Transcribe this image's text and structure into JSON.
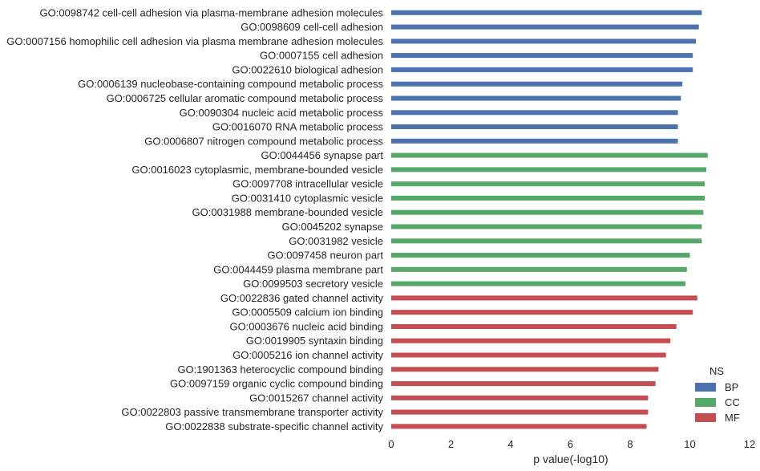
{
  "chart_data": {
    "type": "bar",
    "orientation": "horizontal",
    "xlabel": "p value(-log10)",
    "ylabel": "",
    "xlim": [
      0,
      12
    ],
    "x_ticks": [
      "0",
      "2",
      "4",
      "6",
      "8",
      "10",
      "12"
    ],
    "grid": false,
    "legend": {
      "title": "NS",
      "placement": "bottom-right",
      "entries": [
        {
          "name": "BP",
          "color": "#4c72b0"
        },
        {
          "name": "CC",
          "color": "#55a868"
        },
        {
          "name": "MF",
          "color": "#c44e52"
        }
      ]
    },
    "categories": [
      {
        "label": "GO:0098742 cell-cell adhesion via plasma-membrane adhesion molecules",
        "value": 10.4,
        "ns": "BP"
      },
      {
        "label": "GO:0098609 cell-cell adhesion",
        "value": 10.3,
        "ns": "BP"
      },
      {
        "label": "GO:0007156 homophilic cell adhesion via plasma membrane adhesion molecules",
        "value": 10.2,
        "ns": "BP"
      },
      {
        "label": "GO:0007155 cell adhesion",
        "value": 10.1,
        "ns": "BP"
      },
      {
        "label": "GO:0022610 biological adhesion",
        "value": 10.1,
        "ns": "BP"
      },
      {
        "label": "GO:0006139 nucleobase-containing compound metabolic process",
        "value": 9.75,
        "ns": "BP"
      },
      {
        "label": "GO:0006725 cellular aromatic compound metabolic process",
        "value": 9.7,
        "ns": "BP"
      },
      {
        "label": "GO:0090304 nucleic acid metabolic process",
        "value": 9.6,
        "ns": "BP"
      },
      {
        "label": "GO:0016070 RNA metabolic process",
        "value": 9.6,
        "ns": "BP"
      },
      {
        "label": "GO:0006807 nitrogen compound metabolic process",
        "value": 9.6,
        "ns": "BP"
      },
      {
        "label": "GO:0044456 synapse part",
        "value": 10.6,
        "ns": "CC"
      },
      {
        "label": "GO:0016023 cytoplasmic, membrane-bounded vesicle",
        "value": 10.55,
        "ns": "CC"
      },
      {
        "label": "GO:0097708 intracellular vesicle",
        "value": 10.5,
        "ns": "CC"
      },
      {
        "label": "GO:0031410 cytoplasmic vesicle",
        "value": 10.5,
        "ns": "CC"
      },
      {
        "label": "GO:0031988 membrane-bounded vesicle",
        "value": 10.45,
        "ns": "CC"
      },
      {
        "label": "GO:0045202 synapse",
        "value": 10.4,
        "ns": "CC"
      },
      {
        "label": "GO:0031982 vesicle",
        "value": 10.4,
        "ns": "CC"
      },
      {
        "label": "GO:0097458 neuron part",
        "value": 10.0,
        "ns": "CC"
      },
      {
        "label": "GO:0044459 plasma membrane part",
        "value": 9.9,
        "ns": "CC"
      },
      {
        "label": "GO:0099503 secretory vesicle",
        "value": 9.85,
        "ns": "CC"
      },
      {
        "label": "GO:0022836 gated channel activity",
        "value": 10.25,
        "ns": "MF"
      },
      {
        "label": "GO:0005509 calcium ion binding",
        "value": 10.1,
        "ns": "MF"
      },
      {
        "label": "GO:0003676 nucleic acid binding",
        "value": 9.55,
        "ns": "MF"
      },
      {
        "label": "GO:0019905 syntaxin binding",
        "value": 9.35,
        "ns": "MF"
      },
      {
        "label": "GO:0005216 ion channel activity",
        "value": 9.2,
        "ns": "MF"
      },
      {
        "label": "GO:1901363 heterocyclic compound binding",
        "value": 8.95,
        "ns": "MF"
      },
      {
        "label": "GO:0097159 organic cyclic compound binding",
        "value": 8.85,
        "ns": "MF"
      },
      {
        "label": "GO:0015267 channel activity",
        "value": 8.6,
        "ns": "MF"
      },
      {
        "label": "GO:0022803 passive transmembrane transporter activity",
        "value": 8.6,
        "ns": "MF"
      },
      {
        "label": "GO:0022838 substrate-specific channel activity",
        "value": 8.55,
        "ns": "MF"
      }
    ]
  }
}
